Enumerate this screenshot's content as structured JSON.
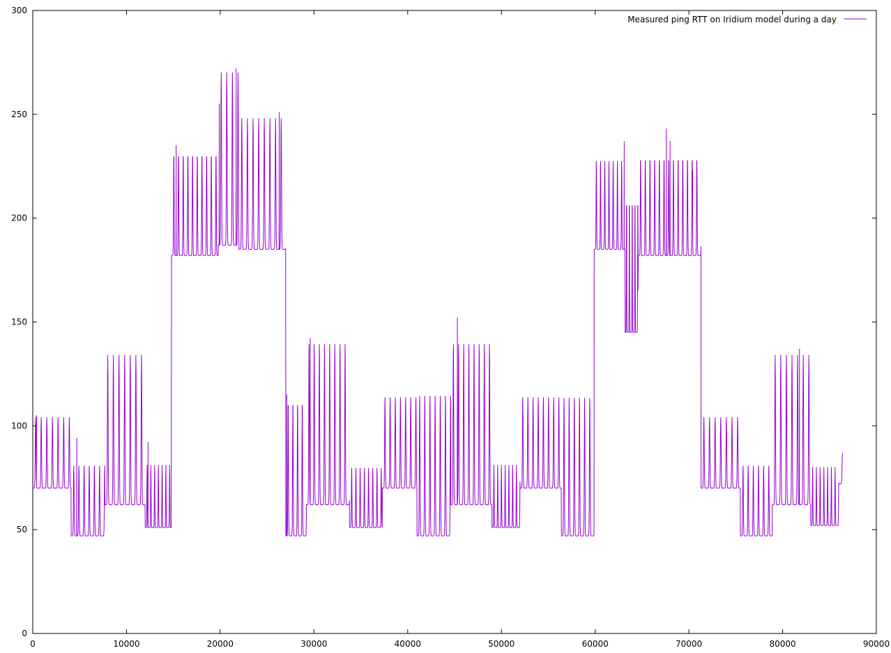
{
  "chart_data": {
    "type": "line",
    "title": "",
    "xlabel": "",
    "ylabel": "",
    "xlim": [
      0,
      90000
    ],
    "ylim": [
      0,
      300
    ],
    "x_ticks": [
      "0",
      "10000",
      "20000",
      "30000",
      "40000",
      "50000",
      "60000",
      "70000",
      "80000",
      "90000"
    ],
    "y_ticks": [
      "0",
      "50",
      "100",
      "150",
      "200",
      "250",
      "300"
    ],
    "grid": false,
    "legend": "top-right",
    "series": [
      {
        "name": "Measured ping RTT on Iridium model during a day",
        "color": "#9400d3",
        "segments": [
          {
            "x0": 0,
            "x1": 4100,
            "base": 70,
            "peak": 104,
            "period": 600
          },
          {
            "x0": 4100,
            "x1": 7700,
            "base": 47,
            "peak": 81,
            "period": 550
          },
          {
            "x0": 7700,
            "x1": 12000,
            "base": 62,
            "peak": 134,
            "period": 600
          },
          {
            "x0": 12000,
            "x1": 14800,
            "base": 51,
            "peak": 81,
            "period": 400
          },
          {
            "x0": 14800,
            "x1": 19800,
            "base": 182,
            "peak": 232,
            "period": 500
          },
          {
            "x0": 19800,
            "x1": 22000,
            "base": 187,
            "peak": 270,
            "period": 600
          },
          {
            "x0": 22000,
            "x1": 27000,
            "base": 185,
            "peak": 248,
            "period": 600
          },
          {
            "x0": 27000,
            "x1": 29200,
            "base": 47,
            "peak": 113,
            "period": 500
          },
          {
            "x0": 29200,
            "x1": 33800,
            "base": 62,
            "peak": 140,
            "period": 550
          },
          {
            "x0": 33800,
            "x1": 37300,
            "base": 51,
            "peak": 80,
            "period": 450
          },
          {
            "x0": 37300,
            "x1": 41000,
            "base": 70,
            "peak": 114,
            "period": 550
          },
          {
            "x0": 41000,
            "x1": 44600,
            "base": 47,
            "peak": 115,
            "period": 550
          },
          {
            "x0": 44600,
            "x1": 49000,
            "base": 62,
            "peak": 140,
            "period": 550
          },
          {
            "x0": 49000,
            "x1": 52000,
            "base": 51,
            "peak": 81,
            "period": 400
          },
          {
            "x0": 52000,
            "x1": 56400,
            "base": 70,
            "peak": 114,
            "period": 550
          },
          {
            "x0": 56400,
            "x1": 59900,
            "base": 47,
            "peak": 114,
            "period": 550
          },
          {
            "x0": 59900,
            "x1": 63200,
            "base": 185,
            "peak": 228,
            "period": 450
          },
          {
            "x0": 63200,
            "x1": 64600,
            "base": 145,
            "peak": 215,
            "period": 300
          },
          {
            "x0": 64600,
            "x1": 71300,
            "base": 182,
            "peak": 230,
            "period": 500
          },
          {
            "x0": 71300,
            "x1": 75500,
            "base": 70,
            "peak": 104,
            "period": 600
          },
          {
            "x0": 75500,
            "x1": 78900,
            "base": 47,
            "peak": 81,
            "period": 550
          },
          {
            "x0": 78900,
            "x1": 83000,
            "base": 62,
            "peak": 134,
            "period": 600
          },
          {
            "x0": 83000,
            "x1": 86000,
            "base": 52,
            "peak": 80,
            "period": 400
          },
          {
            "x0": 86000,
            "x1": 86400,
            "base": 72,
            "peak": 88,
            "period": 800
          }
        ],
        "spikes": [
          {
            "x": 400,
            "y": 105
          },
          {
            "x": 4700,
            "y": 94
          },
          {
            "x": 12300,
            "y": 92
          },
          {
            "x": 15300,
            "y": 235
          },
          {
            "x": 19900,
            "y": 255
          },
          {
            "x": 21700,
            "y": 272
          },
          {
            "x": 26300,
            "y": 251
          },
          {
            "x": 27100,
            "y": 115
          },
          {
            "x": 29600,
            "y": 142
          },
          {
            "x": 45300,
            "y": 152
          },
          {
            "x": 63100,
            "y": 237
          },
          {
            "x": 67600,
            "y": 243
          },
          {
            "x": 68000,
            "y": 237
          },
          {
            "x": 70400,
            "y": 223
          },
          {
            "x": 81800,
            "y": 137
          }
        ]
      }
    ]
  }
}
